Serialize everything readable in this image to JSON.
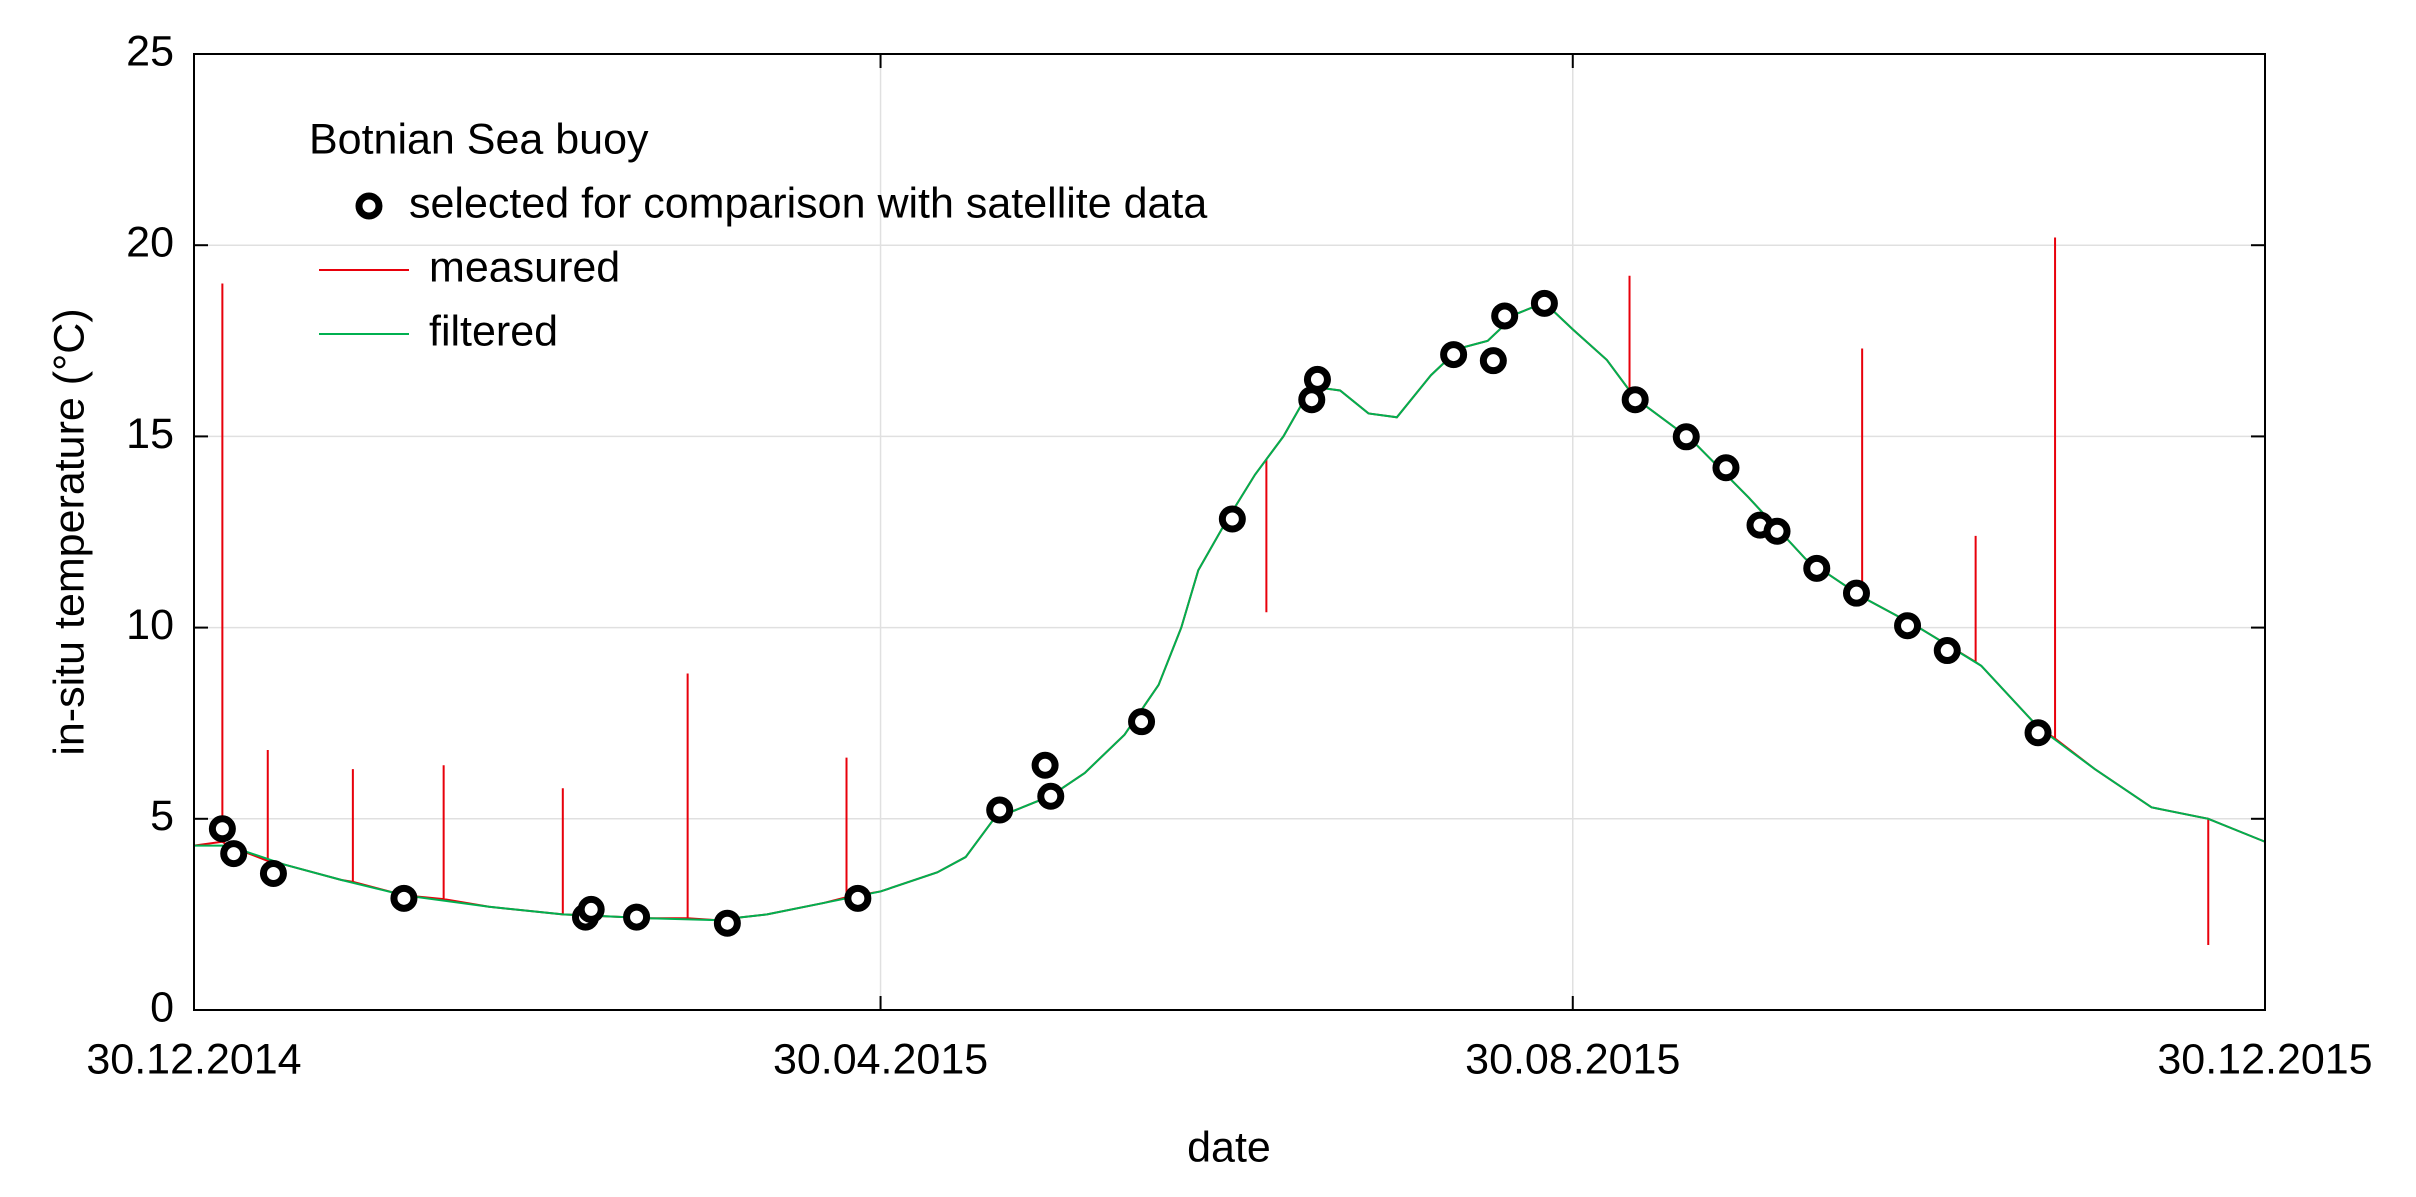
{
  "chart_data": {
    "type": "line",
    "y_label": "in-situ temperature (°C)",
    "x_label": "date",
    "legend_title": "Botnian Sea buoy",
    "legend": "upper left",
    "grid": true,
    "xlim": [
      "30.12.2014",
      "30.12.2015"
    ],
    "xticks": [
      "30.12.2014",
      "30.04.2015",
      "30.08.2015",
      "30.12.2015"
    ],
    "ylim": [
      0,
      25
    ],
    "yticks": [
      0,
      5,
      10,
      15,
      20,
      25
    ],
    "series": [
      {
        "name": "selected for comparison with satellite data",
        "color": "#000000",
        "marker": "circle",
        "x": [
          "04.01.2015",
          "06.01.2015",
          "13.01.2015",
          "05.02.2015",
          "09.03.2015",
          "10.03.2015",
          "18.03.2015",
          "03.04.2015",
          "26.04.2015",
          "21.05.2015",
          "29.05.2015",
          "30.05.2015",
          "15.06.2015",
          "01.07.2015",
          "15.07.2015",
          "16.07.2015",
          "09.08.2015",
          "16.08.2015",
          "18.08.2015",
          "25.08.2015",
          "10.09.2015",
          "19.09.2015",
          "26.09.2015",
          "02.10.2015",
          "05.10.2015",
          "12.10.2015",
          "19.10.2015",
          "28.10.2015",
          "04.11.2015",
          "20.11.2015"
        ],
        "values": [
          4.74,
          4.09,
          3.57,
          2.92,
          2.43,
          2.63,
          2.43,
          2.27,
          2.92,
          5.23,
          6.4,
          5.59,
          7.54,
          12.84,
          15.96,
          16.49,
          17.14,
          16.98,
          18.15,
          18.48,
          15.96,
          14.99,
          14.18,
          12.68,
          12.52,
          11.55,
          10.9,
          10.05,
          9.4,
          7.25
        ]
      },
      {
        "name": "measured",
        "color": "#e8000b",
        "marker": "line",
        "x": [
          "30.12.2014",
          "04.01.2015",
          "04.01.2015",
          "04.01.2015",
          "05.01.2015",
          "12.01.2015",
          "12.01.2015",
          "12.01.2015",
          "15.01.2015",
          "25.01.2015",
          "27.01.2015",
          "27.01.2015",
          "27.01.2015",
          "05.02.2015",
          "12.02.2015",
          "12.02.2015",
          "12.02.2015",
          "20.02.2015",
          "05.03.2015",
          "05.03.2015",
          "05.03.2015",
          "20.03.2015",
          "27.03.2015",
          "27.03.2015",
          "27.03.2015",
          "01.04.2015",
          "10.04.2015",
          "20.04.2015",
          "24.04.2015",
          "24.04.2015",
          "24.04.2015",
          "30.04.2015",
          "10.05.2015",
          "15.05.2015",
          "20.05.2015",
          "25.05.2015",
          "30.05.2015",
          "05.06.2015",
          "12.06.2015",
          "18.06.2015",
          "22.06.2015",
          "25.06.2015",
          "30.06.2015",
          "05.07.2015",
          "07.07.2015",
          "07.07.2015",
          "07.07.2015",
          "10.07.2015",
          "15.07.2015",
          "20.07.2015",
          "25.07.2015",
          "30.07.2015",
          "05.08.2015",
          "10.08.2015",
          "15.08.2015",
          "20.08.2015",
          "25.08.2015",
          "30.08.2015",
          "05.09.2015",
          "09.09.2015",
          "09.09.2015",
          "09.09.2015",
          "10.09.2015",
          "20.09.2015",
          "30.09.2015",
          "10.10.2015",
          "20.10.2015",
          "20.10.2015",
          "20.10.2015",
          "30.10.2015",
          "09.11.2015",
          "09.11.2015",
          "09.11.2015",
          "10.11.2015",
          "20.11.2015",
          "23.11.2015",
          "23.11.2015",
          "23.11.2015",
          "30.11.2015",
          "10.12.2015",
          "20.12.2015",
          "20.12.2015",
          "20.12.2015",
          "30.12.2015"
        ],
        "values": [
          4.3,
          4.4,
          19.0,
          4.4,
          4.3,
          3.9,
          6.8,
          3.9,
          3.8,
          3.4,
          3.35,
          6.3,
          3.35,
          3.0,
          2.9,
          6.4,
          2.9,
          2.7,
          2.5,
          5.8,
          2.5,
          2.4,
          2.4,
          8.8,
          2.4,
          2.35,
          2.5,
          2.8,
          2.95,
          6.6,
          2.95,
          3.1,
          3.6,
          4.0,
          5.0,
          5.3,
          5.6,
          6.2,
          7.2,
          8.5,
          10.0,
          11.5,
          12.8,
          14.0,
          14.4,
          10.4,
          14.4,
          15.0,
          16.3,
          16.2,
          15.6,
          15.5,
          16.6,
          17.3,
          17.5,
          18.2,
          18.5,
          17.8,
          17.0,
          16.2,
          19.2,
          16.2,
          16.0,
          14.9,
          13.4,
          11.8,
          10.8,
          17.3,
          10.8,
          10.0,
          9.1,
          12.4,
          9.1,
          9.0,
          7.4,
          7.1,
          20.2,
          7.1,
          6.3,
          5.3,
          5.0,
          1.7,
          5.0,
          4.4
        ]
      },
      {
        "name": "filtered",
        "color": "#00b050",
        "marker": "line",
        "x": [
          "30.12.2014",
          "05.01.2015",
          "15.01.2015",
          "25.01.2015",
          "05.02.2015",
          "20.02.2015",
          "05.03.2015",
          "20.03.2015",
          "01.04.2015",
          "10.04.2015",
          "20.04.2015",
          "30.04.2015",
          "10.05.2015",
          "15.05.2015",
          "20.05.2015",
          "25.05.2015",
          "30.05.2015",
          "05.06.2015",
          "12.06.2015",
          "18.06.2015",
          "22.06.2015",
          "25.06.2015",
          "30.06.2015",
          "05.07.2015",
          "10.07.2015",
          "15.07.2015",
          "20.07.2015",
          "25.07.2015",
          "30.07.2015",
          "05.08.2015",
          "10.08.2015",
          "15.08.2015",
          "20.08.2015",
          "25.08.2015",
          "30.08.2015",
          "05.09.2015",
          "10.09.2015",
          "20.09.2015",
          "30.09.2015",
          "10.10.2015",
          "20.10.2015",
          "30.10.2015",
          "10.11.2015",
          "20.11.2015",
          "30.11.2015",
          "10.12.2015",
          "20.12.2015",
          "30.12.2015"
        ],
        "values": [
          4.3,
          4.3,
          3.8,
          3.4,
          3.0,
          2.7,
          2.5,
          2.4,
          2.35,
          2.5,
          2.8,
          3.1,
          3.6,
          4.0,
          5.0,
          5.3,
          5.6,
          6.2,
          7.2,
          8.5,
          10.0,
          11.5,
          12.8,
          14.0,
          15.0,
          16.3,
          16.2,
          15.6,
          15.5,
          16.6,
          17.3,
          17.5,
          18.2,
          18.5,
          17.8,
          17.0,
          16.0,
          14.9,
          13.4,
          11.8,
          10.8,
          10.0,
          9.0,
          7.4,
          6.3,
          5.3,
          5.0,
          4.4
        ]
      }
    ]
  }
}
